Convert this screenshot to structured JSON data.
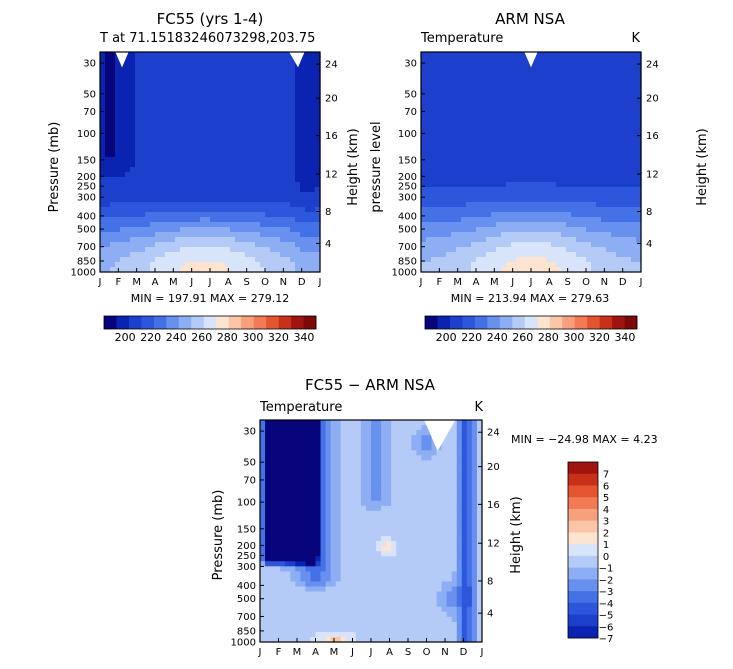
{
  "colors": {
    "scale_blue_to_red": [
      "#08047c",
      "#0a23b0",
      "#1c3fcc",
      "#2c56dc",
      "#4472e6",
      "#6890ee",
      "#8eaef4",
      "#b4cbf8",
      "#d8e4fa",
      "#fde4d0",
      "#fbc6a8",
      "#f8a07c",
      "#f27a55",
      "#e2552f",
      "#c8301a",
      "#a01410",
      "#7c0808"
    ],
    "frame": "#000000",
    "background": "#ffffff"
  },
  "chart_data": [
    {
      "type": "heatmap",
      "id": "fc55",
      "title": "FC55 (yrs 1-4)",
      "subtitle": "T at 71.15183246073298,203.75",
      "left_label": "",
      "right_label": "",
      "ylabel": "Pressure (mb)",
      "ylabel_right": "Height (km)",
      "months": [
        "J",
        "F",
        "M",
        "A",
        "M",
        "J",
        "J",
        "A",
        "S",
        "O",
        "N",
        "D",
        "J"
      ],
      "pressure_ticks": [
        "30",
        "50",
        "70",
        "100",
        "150",
        "200",
        "250",
        "300",
        "400",
        "500",
        "700",
        "850",
        "1000"
      ],
      "height_ticks": [
        "24",
        "20",
        "16",
        "12",
        "8",
        "4"
      ],
      "min_max": "MIN = 197.91 MAX = 279.12",
      "colorbar": {
        "labels": [
          "200",
          "220",
          "240",
          "260",
          "280",
          "300",
          "320",
          "340"
        ],
        "range": [
          190,
          350
        ]
      }
    },
    {
      "type": "heatmap",
      "id": "arm",
      "title": "ARM NSA",
      "left_label": "Temperature",
      "right_label": "K",
      "ylabel": "pressure level",
      "ylabel_right": "Height (km)",
      "months": [
        "J",
        "F",
        "M",
        "A",
        "M",
        "J",
        "J",
        "A",
        "S",
        "O",
        "N",
        "D",
        "J"
      ],
      "pressure_ticks": [
        "30",
        "50",
        "70",
        "100",
        "150",
        "200",
        "250",
        "300",
        "400",
        "500",
        "700",
        "850",
        "1000"
      ],
      "height_ticks": [
        "24",
        "20",
        "16",
        "12",
        "8",
        "4"
      ],
      "min_max": "MIN = 213.94 MAX = 279.63",
      "colorbar": {
        "labels": [
          "200",
          "220",
          "240",
          "260",
          "280",
          "300",
          "320",
          "340"
        ],
        "range": [
          190,
          350
        ]
      }
    },
    {
      "type": "heatmap",
      "id": "diff",
      "title": "FC55 − ARM NSA",
      "left_label": "Temperature",
      "right_label": "K",
      "ylabel": "Pressure (mb)",
      "ylabel_right": "Height (km)",
      "months": [
        "J",
        "F",
        "M",
        "A",
        "M",
        "J",
        "J",
        "A",
        "S",
        "O",
        "N",
        "D",
        "J"
      ],
      "pressure_ticks": [
        "30",
        "50",
        "70",
        "100",
        "150",
        "200",
        "250",
        "300",
        "400",
        "500",
        "700",
        "850",
        "1000"
      ],
      "height_ticks": [
        "24",
        "20",
        "16",
        "12",
        "8",
        "4"
      ],
      "min_max": "MIN = −24.98 MAX =    4.23",
      "colorbar": {
        "labels": [
          "7",
          "6",
          "5",
          "4",
          "3",
          "2",
          "1",
          "0",
          "−1",
          "−2",
          "−3",
          "−4",
          "−5",
          "−6",
          "−7"
        ],
        "range": [
          -8,
          8
        ]
      }
    }
  ]
}
